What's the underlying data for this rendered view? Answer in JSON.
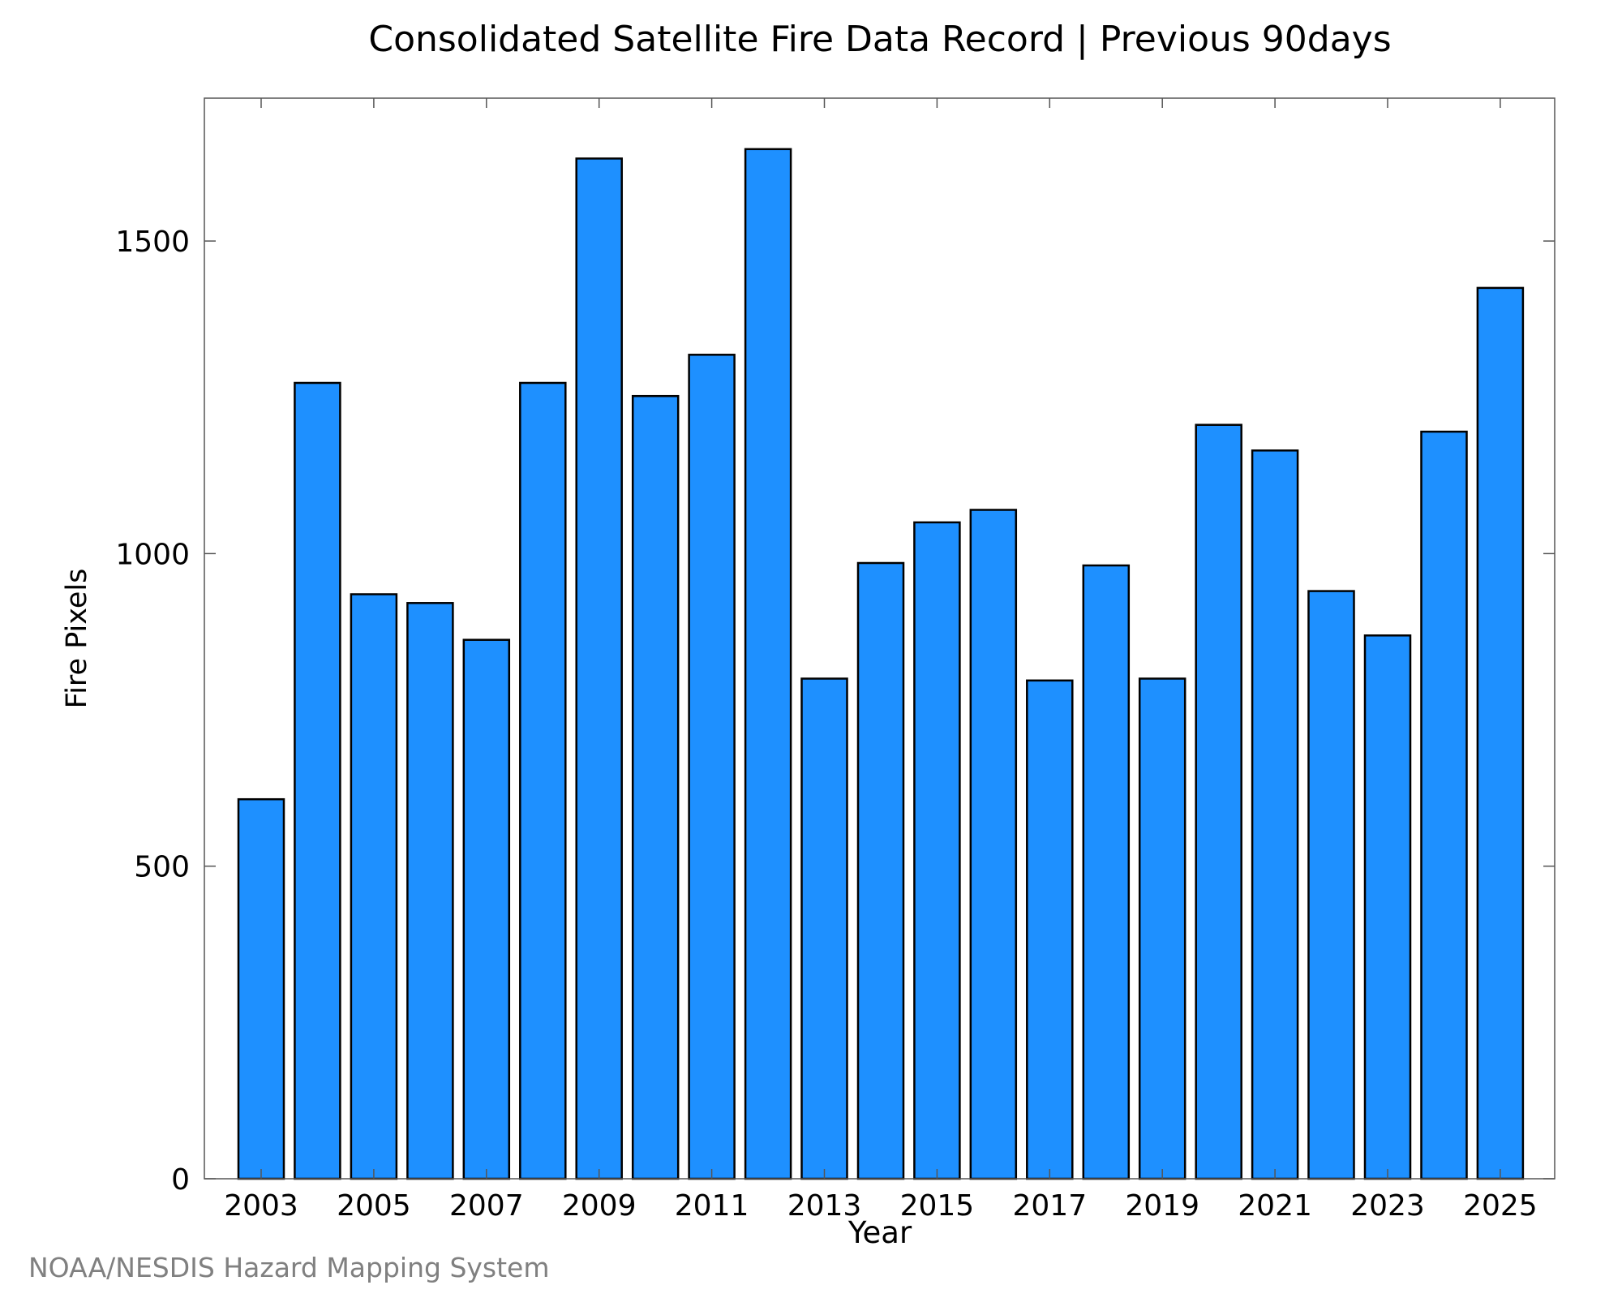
{
  "chart_data": {
    "type": "bar",
    "title": "Consolidated Satellite Fire Data Record | Previous 90days",
    "xlabel": "Year",
    "ylabel": "Fire Pixels",
    "categories": [
      "2003",
      "2004",
      "2005",
      "2006",
      "2007",
      "2008",
      "2009",
      "2010",
      "2011",
      "2012",
      "2013",
      "2014",
      "2015",
      "2016",
      "2017",
      "2018",
      "2019",
      "2020",
      "2021",
      "2022",
      "2023",
      "2024",
      "2025"
    ],
    "values": [
      607,
      1273,
      935,
      921,
      862,
      1273,
      1632,
      1252,
      1318,
      1647,
      800,
      985,
      1050,
      1070,
      797,
      981,
      800,
      1206,
      1165,
      940,
      869,
      1195,
      1425
    ],
    "xticks": [
      "2003",
      "2005",
      "2007",
      "2009",
      "2011",
      "2013",
      "2015",
      "2017",
      "2019",
      "2021",
      "2023",
      "2025"
    ],
    "yticks": [
      "0",
      "500",
      "1000",
      "1500"
    ],
    "ylim": [
      0,
      1730
    ],
    "bar_color": "#1e90ff",
    "edge_color": "#000000",
    "grid": false
  },
  "credit": "NOAA/NESDIS Hazard Mapping System"
}
